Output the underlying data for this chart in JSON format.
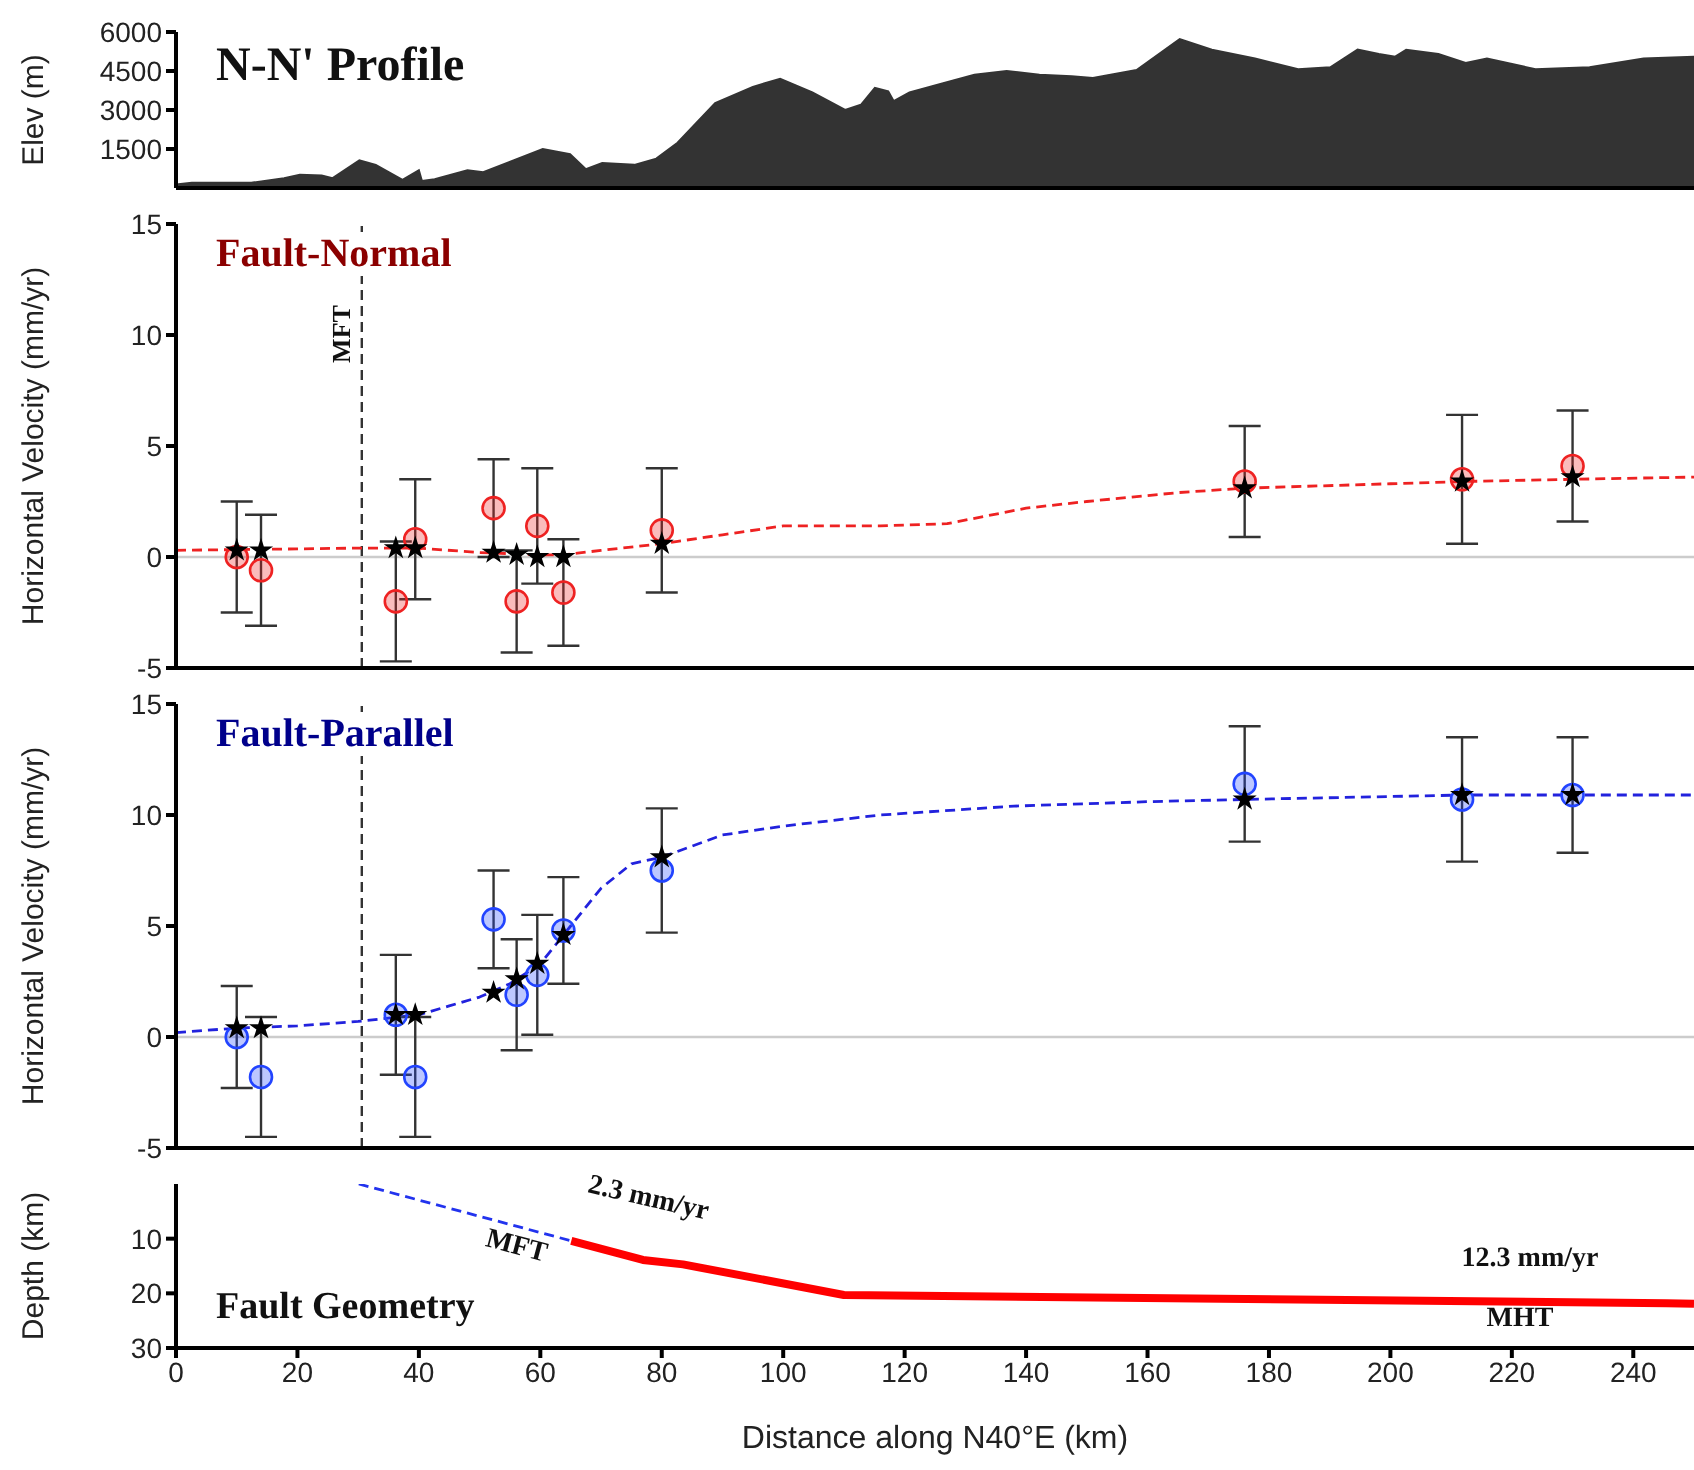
{
  "chart_data": [
    {
      "type": "area",
      "title": "N-N' Profile",
      "ylabel": "Elev (m)",
      "xlim": [
        0,
        250
      ],
      "xticks": [
        0,
        20,
        40,
        60,
        80,
        100,
        120,
        140,
        160,
        180,
        200,
        220,
        240
      ],
      "ylim": [
        0,
        6000
      ],
      "yticks": [
        1500,
        3000,
        4500,
        6000
      ],
      "tick_labels": "y",
      "series": [
        {
          "color": "#333333",
          "x": [
            0,
            2.6,
            12.4,
            17.8,
            20.4,
            24,
            25.8,
            30.2,
            32.9,
            37.3,
            40,
            40.5,
            42.6,
            48,
            50.6,
            60.4,
            64.9,
            67.5,
            70.2,
            75.5,
            79.1,
            82.6,
            88.8,
            95,
            99.5,
            104.8,
            110.2,
            112.8,
            115.1,
            117.3,
            118.2,
            120.8,
            126.2,
            131.5,
            136.8,
            142.2,
            147.5,
            151,
            158.2,
            165.3,
            170.6,
            177.7,
            184.8,
            190.1,
            194.6,
            198.1,
            200.8,
            202.6,
            207.9,
            212.4,
            215.9,
            223.9,
            232.8,
            241.7,
            250
          ],
          "values": [
            130,
            200,
            200,
            380,
            510,
            480,
            380,
            1060,
            890,
            310,
            680,
            270,
            340,
            680,
            610,
            1500,
            1300,
            720,
            960,
            890,
            1130,
            1740,
            3270,
            3890,
            4200,
            3680,
            3000,
            3200,
            3850,
            3720,
            3340,
            3680,
            4020,
            4360,
            4500,
            4360,
            4300,
            4230,
            4540,
            5730,
            5320,
            4980,
            4570,
            4640,
            5320,
            5150,
            5050,
            5320,
            5150,
            4810,
            4980,
            4570,
            4640,
            4980,
            5050
          ]
        }
      ]
    },
    {
      "type": "scatter",
      "title": "Fault-Normal",
      "ylabel": "Horizontal Velocity (mm/yr)",
      "xlim": [
        0,
        250
      ],
      "xticks": [
        0,
        20,
        40,
        60,
        80,
        100,
        120,
        140,
        160,
        180,
        200,
        220,
        240
      ],
      "ylim": [
        -5,
        15
      ],
      "yticks": [
        -5,
        0,
        5,
        10,
        15
      ],
      "tick_labels": "y",
      "ref_lines": [
        {
          "axis": "y",
          "value": 0,
          "color": "#cccccc",
          "line_style": "solid"
        },
        {
          "axis": "x",
          "value": 30.6,
          "label": "MFT",
          "color": "#333333",
          "line_style": "dashed"
        }
      ],
      "series": [
        {
          "type": "line",
          "color": "#ee2222",
          "line_style": "dashed",
          "marker": "none",
          "x": [
            0,
            30,
            40,
            50,
            60,
            64,
            70,
            80,
            90,
            100,
            116,
            127,
            140,
            150,
            165,
            176,
            200,
            212,
            230,
            250
          ],
          "values": [
            0.3,
            0.4,
            0.4,
            0.2,
            0.1,
            0.1,
            0.3,
            0.6,
            1.0,
            1.4,
            1.4,
            1.5,
            2.2,
            2.5,
            2.9,
            3.1,
            3.3,
            3.4,
            3.5,
            3.6
          ]
        },
        {
          "color": "#ee2222",
          "marker": "circle",
          "x": [
            10,
            14,
            36.2,
            39.4,
            52.3,
            56.1,
            59.5,
            63.8,
            80,
            176,
            211.8,
            230
          ],
          "values": [
            0,
            -0.6,
            -2.0,
            0.8,
            2.2,
            -2.0,
            1.4,
            -1.6,
            1.2,
            3.4,
            3.5,
            4.1
          ],
          "errors": [
            2.5,
            2.5,
            2.7,
            2.7,
            2.2,
            2.3,
            2.6,
            2.4,
            2.8,
            2.5,
            2.9,
            2.5
          ]
        },
        {
          "color": "#000000",
          "marker": "star",
          "x": [
            10,
            14,
            36.2,
            39.4,
            52.3,
            56.1,
            59.5,
            63.8,
            80,
            176,
            211.8,
            230
          ],
          "values": [
            0.3,
            0.3,
            0.4,
            0.4,
            0.2,
            0.1,
            0.0,
            0.0,
            0.6,
            3.1,
            3.4,
            3.6
          ]
        }
      ]
    },
    {
      "type": "scatter",
      "title": "Fault-Parallel",
      "ylabel": "Horizontal Velocity (mm/yr)",
      "xlim": [
        0,
        250
      ],
      "xticks": [
        0,
        20,
        40,
        60,
        80,
        100,
        120,
        140,
        160,
        180,
        200,
        220,
        240
      ],
      "ylim": [
        -5,
        15
      ],
      "yticks": [
        -5,
        0,
        5,
        10,
        15
      ],
      "tick_labels": "y",
      "ref_lines": [
        {
          "axis": "y",
          "value": 0,
          "color": "#cccccc",
          "line_style": "solid"
        },
        {
          "axis": "x",
          "value": 30.6,
          "color": "#333333",
          "line_style": "dashed"
        }
      ],
      "series": [
        {
          "type": "line",
          "color": "#2222dd",
          "line_style": "dashed",
          "marker": "none",
          "x": [
            0,
            10,
            20,
            30,
            40,
            45,
            50,
            55,
            60,
            65,
            70,
            75,
            80,
            90,
            100,
            116,
            138,
            160,
            176,
            212,
            250
          ],
          "values": [
            0.2,
            0.4,
            0.5,
            0.7,
            1.0,
            1.4,
            1.8,
            2.4,
            3.3,
            5.0,
            6.7,
            7.8,
            8.1,
            9.1,
            9.5,
            10.0,
            10.4,
            10.6,
            10.7,
            10.9,
            10.9
          ]
        },
        {
          "color": "#2244ff",
          "marker": "circle",
          "x": [
            10,
            14,
            36.2,
            39.4,
            52.3,
            56.1,
            59.5,
            63.8,
            80,
            176,
            211.8,
            230
          ],
          "values": [
            0,
            -1.8,
            1.0,
            -1.8,
            5.3,
            1.9,
            2.8,
            4.8,
            7.5,
            11.4,
            10.7,
            10.9
          ],
          "errors": [
            2.3,
            2.7,
            2.7,
            2.7,
            2.2,
            2.5,
            2.7,
            2.4,
            2.8,
            2.6,
            2.8,
            2.6
          ]
        },
        {
          "color": "#000000",
          "marker": "star",
          "x": [
            10,
            14,
            36.2,
            39.4,
            52.3,
            56.1,
            59.5,
            63.8,
            80,
            176,
            211.8,
            230
          ],
          "values": [
            0.4,
            0.4,
            1.0,
            1.0,
            2.0,
            2.6,
            3.3,
            4.6,
            8.1,
            10.7,
            10.9,
            10.9
          ]
        }
      ]
    },
    {
      "type": "line",
      "title": "Fault Geometry",
      "xlabel": "Distance along N40°E (km)",
      "ylabel": "Depth (km)",
      "xlim": [
        0,
        250
      ],
      "xticks": [
        0,
        20,
        40,
        60,
        80,
        100,
        120,
        140,
        160,
        180,
        200,
        220,
        240
      ],
      "ylim": [
        30,
        0
      ],
      "yticks": [
        10,
        20,
        30
      ],
      "annotations": [
        "2.3 mm/yr",
        "MFT",
        "12.3 mm/yr",
        "MHT"
      ],
      "series": [
        {
          "color": "#2233ee",
          "line_style": "dashed",
          "marker": "none",
          "x": [
            30.1,
            65.1
          ],
          "values": [
            0,
            10.4
          ]
        },
        {
          "color": "#ff0000",
          "line_style": "solid",
          "marker": "none",
          "x": [
            65.1,
            76.9,
            83.5,
            110,
            245.5,
            250
          ],
          "values": [
            10.4,
            13.9,
            14.7,
            20.3,
            21.8,
            21.9
          ]
        }
      ]
    }
  ]
}
